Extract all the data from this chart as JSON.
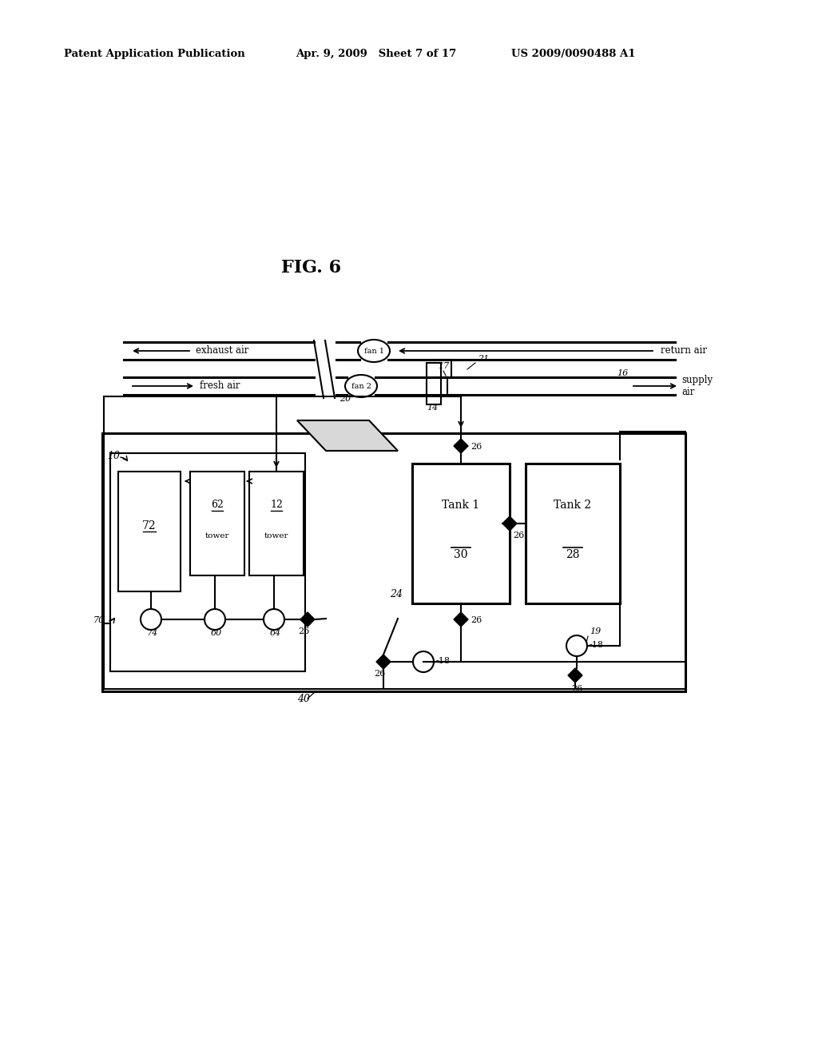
{
  "bg_color": "#ffffff",
  "header_left": "Patent Application Publication",
  "header_mid": "Apr. 9, 2009   Sheet 7 of 17",
  "header_right": "US 2009/0090488 A1",
  "fig_label": "FIG. 6"
}
